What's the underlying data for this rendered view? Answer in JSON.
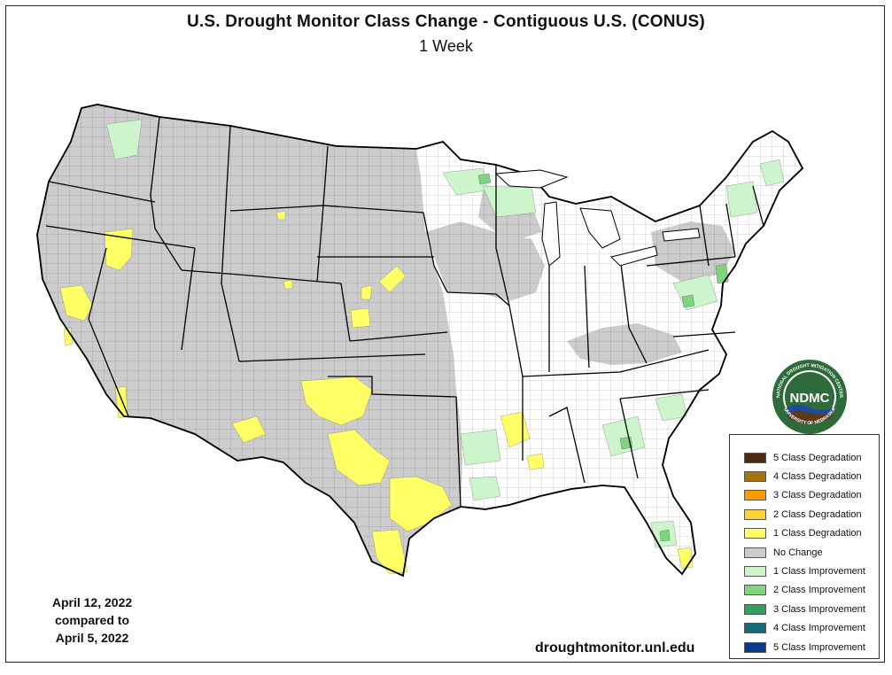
{
  "title": "U.S. Drought Monitor Class Change - Contiguous U.S. (CONUS)",
  "subtitle": "1 Week",
  "date_block": {
    "line1": "April 12, 2022",
    "line2": "compared to",
    "line3": "April 5, 2022"
  },
  "source_url": "droughtmonitor.unl.edu",
  "logo": {
    "center_text": "NDMC",
    "ring_top": "NATIONAL DROUGHT MITIGATION CENTER",
    "ring_bottom": "UNIVERSITY OF NEBRASKA"
  },
  "legend": [
    {
      "label": "5 Class Degradation",
      "color": "#4a2a10"
    },
    {
      "label": "4 Class Degradation",
      "color": "#a8720a"
    },
    {
      "label": "3 Class Degradation",
      "color": "#ff9a00"
    },
    {
      "label": "2 Class Degradation",
      "color": "#ffd33c"
    },
    {
      "label": "1 Class Degradation",
      "color": "#ffff66"
    },
    {
      "label": "No Change",
      "color": "#cccccc"
    },
    {
      "label": "1 Class Improvement",
      "color": "#ccf5cc"
    },
    {
      "label": "2 Class Improvement",
      "color": "#7fd47f"
    },
    {
      "label": "3 Class Improvement",
      "color": "#33a060"
    },
    {
      "label": "4 Class Improvement",
      "color": "#136b7a"
    },
    {
      "label": "5 Class Improvement",
      "color": "#0a3a8a"
    }
  ],
  "colors": {
    "no_change": "#cccccc",
    "degradation_1": "#ffff66",
    "improvement_1": "#ccf5cc",
    "improvement_2": "#7fd47f",
    "unchanged_white": "#ffffff",
    "logo_green": "#2f6b3a",
    "logo_blue": "#1f4aa0",
    "logo_brown": "#5a3a1a"
  }
}
